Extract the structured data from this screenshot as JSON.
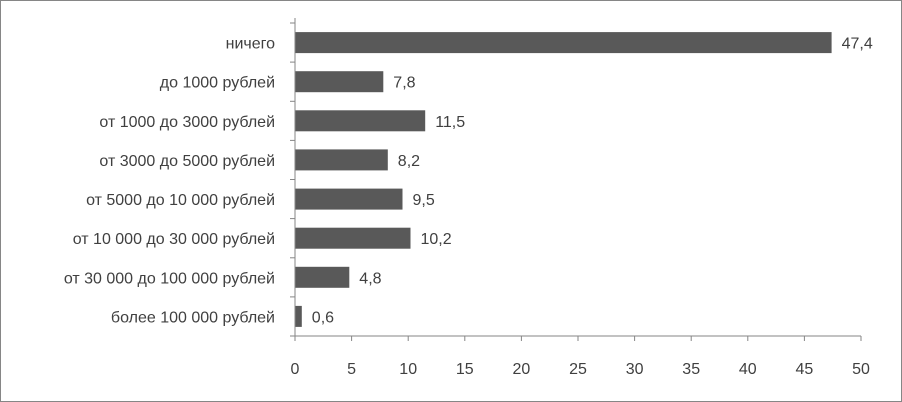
{
  "colors": {
    "bar": "#595959",
    "axis": "#868686",
    "text": "#404040",
    "border": "#868686"
  },
  "chart_data": {
    "type": "bar",
    "orientation": "horizontal",
    "title": "",
    "xlabel": "",
    "ylabel": "",
    "categories": [
      "ничего",
      "до 1000 рублей",
      "от 1000 до 3000 рублей",
      "от 3000 до 5000 рублей",
      "от 5000 до 10 000 рублей",
      "от 10 000 до 30 000 рублей",
      "от 30 000 до 100 000 рублей",
      "более 100 000 рублей"
    ],
    "values": [
      47.4,
      7.8,
      11.5,
      8.2,
      9.5,
      10.2,
      4.8,
      0.6
    ],
    "value_labels": [
      "47,4",
      "7,8",
      "11,5",
      "8,2",
      "9,5",
      "10,2",
      "4,8",
      "0,6"
    ],
    "xlim": [
      0,
      50
    ],
    "xticks": [
      0,
      5,
      10,
      15,
      20,
      25,
      30,
      35,
      40,
      45,
      50
    ],
    "xtick_labels": [
      "0",
      "5",
      "10",
      "15",
      "20",
      "25",
      "30",
      "35",
      "40",
      "45",
      "50"
    ],
    "grid": false,
    "legend": "none"
  }
}
